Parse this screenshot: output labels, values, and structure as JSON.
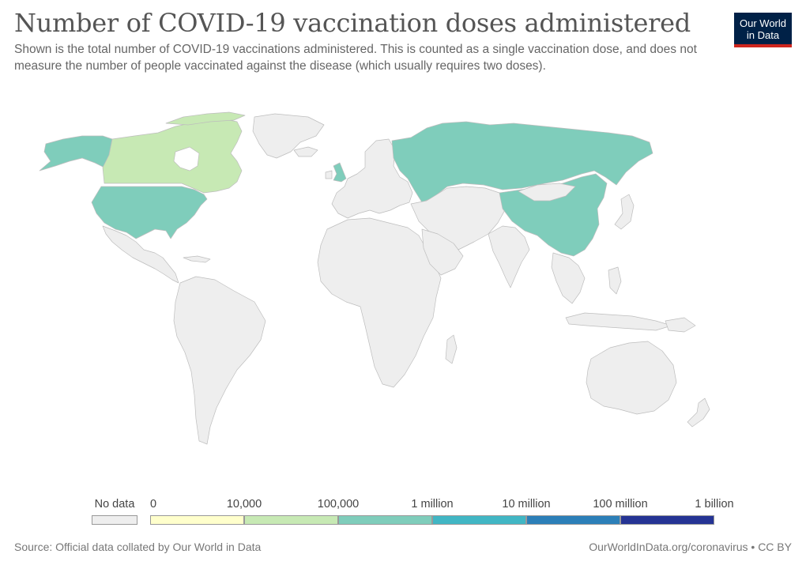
{
  "header": {
    "title": "Number of COVID-19 vaccination doses administered",
    "subtitle": "Shown is the total number of COVID-19 vaccinations administered. This is counted as a single vaccination dose, and does not measure the number of people vaccinated against the disease (which usually requires two doses)."
  },
  "logo": {
    "line1": "Our World",
    "line2": "in Data"
  },
  "legend": {
    "no_data_label": "No data",
    "bins": [
      {
        "from_label": "0",
        "color": "#ffffcc"
      },
      {
        "from_label": "10,000",
        "color": "#c7e9b4"
      },
      {
        "from_label": "100,000",
        "color": "#7fcdbb"
      },
      {
        "from_label": "1 million",
        "color": "#41b6c4"
      },
      {
        "from_label": "10 million",
        "color": "#2c7fb8"
      },
      {
        "from_label": "100 million",
        "color": "#253494"
      }
    ],
    "end_label": "1 billion"
  },
  "colors": {
    "no_data": "#eeeeee",
    "land": "#ececec",
    "usa": "#7fcdbb",
    "canada": "#c7e9b4",
    "russia": "#7fcdbb",
    "china": "#7fcdbb",
    "uk": "#7fcdbb",
    "mexico": "#eeeeee"
  },
  "footer": {
    "source": "Source: Official data collated by Our World in Data",
    "credit": "OurWorldInData.org/coronavirus • CC BY"
  }
}
